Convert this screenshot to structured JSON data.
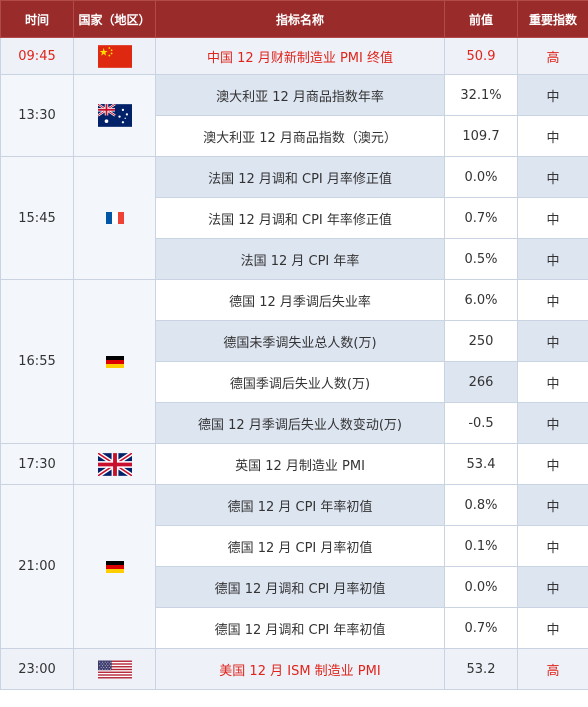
{
  "headers": {
    "time": "时间",
    "country": "国家（地区）",
    "indicator": "指标名称",
    "previous": "前值",
    "importance": "重要指数"
  },
  "groups": [
    {
      "time": "09:45",
      "country_icon": "china-flag-icon",
      "highlight": true,
      "rows": [
        {
          "name": "中国 12 月财新制造业 PMI 终值",
          "previous": "50.9",
          "importance": "高"
        }
      ]
    },
    {
      "time": "13:30",
      "country_icon": "australia-flag-icon",
      "rows": [
        {
          "name": "澳大利亚 12 月商品指数年率",
          "previous": "32.1%",
          "importance": "中"
        },
        {
          "name": "澳大利亚 12 月商品指数（澳元）",
          "previous": "109.7",
          "importance": "中"
        }
      ]
    },
    {
      "time": "15:45",
      "country_icon": "france-flag-icon",
      "rows": [
        {
          "name": "法国 12 月调和 CPI 月率修正值",
          "previous": "0.0%",
          "importance": "中"
        },
        {
          "name": "法国 12 月调和 CPI 年率修正值",
          "previous": "0.7%",
          "importance": "中"
        },
        {
          "name": "法国 12 月 CPI 年率",
          "previous": "0.5%",
          "importance": "中"
        }
      ]
    },
    {
      "time": "16:55",
      "country_icon": "germany-flag-icon",
      "rows": [
        {
          "name": "德国 12 月季调后失业率",
          "previous": "6.0%",
          "importance": "中"
        },
        {
          "name": "德国未季调失业总人数(万)",
          "previous": "250",
          "importance": "中"
        },
        {
          "name": "德国季调后失业人数(万)",
          "previous": "266",
          "importance": "中"
        },
        {
          "name": "德国 12 月季调后失业人数变动(万)",
          "previous": "-0.5",
          "importance": "中"
        }
      ]
    },
    {
      "time": "17:30",
      "country_icon": "uk-flag-icon",
      "rows": [
        {
          "name": "英国 12 月制造业 PMI",
          "previous": "53.4",
          "importance": "中"
        }
      ]
    },
    {
      "time": "21:00",
      "country_icon": "germany-flag-icon",
      "rows": [
        {
          "name": "德国 12 月 CPI 年率初值",
          "previous": "0.8%",
          "importance": "中"
        },
        {
          "name": "德国 12 月 CPI 月率初值",
          "previous": "0.1%",
          "importance": "中"
        },
        {
          "name": "德国 12 月调和 CPI 月率初值",
          "previous": "0.0%",
          "importance": "中"
        },
        {
          "name": "德国 12 月调和 CPI 年率初值",
          "previous": "0.7%",
          "importance": "中"
        }
      ]
    },
    {
      "time": "23:00",
      "country_icon": "usa-flag-icon",
      "highlight": true,
      "rows": [
        {
          "name": "美国 12 月 ISM 制造业 PMI",
          "previous": "53.2",
          "importance": "高"
        }
      ]
    }
  ]
}
